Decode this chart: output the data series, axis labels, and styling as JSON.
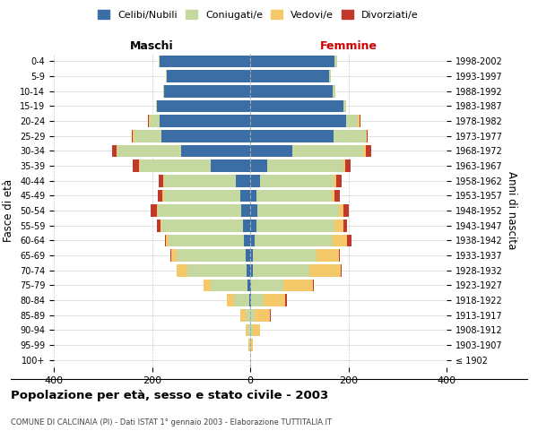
{
  "age_groups": [
    "100+",
    "95-99",
    "90-94",
    "85-89",
    "80-84",
    "75-79",
    "70-74",
    "65-69",
    "60-64",
    "55-59",
    "50-54",
    "45-49",
    "40-44",
    "35-39",
    "30-34",
    "25-29",
    "20-24",
    "15-19",
    "10-14",
    "5-9",
    "0-4"
  ],
  "birth_years": [
    "≤ 1902",
    "1903-1907",
    "1908-1912",
    "1913-1917",
    "1918-1922",
    "1923-1927",
    "1928-1932",
    "1933-1937",
    "1938-1942",
    "1943-1947",
    "1948-1952",
    "1953-1957",
    "1958-1962",
    "1963-1967",
    "1968-1972",
    "1973-1977",
    "1978-1982",
    "1983-1987",
    "1988-1992",
    "1993-1997",
    "1998-2002"
  ],
  "male": {
    "celibi": [
      0,
      0,
      0,
      0,
      2,
      5,
      8,
      10,
      12,
      15,
      18,
      20,
      30,
      80,
      140,
      180,
      185,
      190,
      175,
      170,
      185
    ],
    "coniugati": [
      0,
      2,
      5,
      10,
      30,
      75,
      120,
      140,
      155,
      165,
      170,
      155,
      145,
      145,
      130,
      55,
      20,
      2,
      2,
      2,
      2
    ],
    "vedovi": [
      0,
      2,
      5,
      10,
      15,
      15,
      22,
      10,
      5,
      2,
      2,
      4,
      2,
      2,
      2,
      5,
      2,
      0,
      0,
      0,
      0
    ],
    "divorziati": [
      0,
      0,
      0,
      0,
      0,
      0,
      0,
      2,
      2,
      8,
      12,
      10,
      10,
      12,
      10,
      2,
      2,
      0,
      0,
      0,
      0
    ]
  },
  "female": {
    "nubili": [
      0,
      0,
      0,
      0,
      2,
      2,
      5,
      5,
      10,
      12,
      15,
      12,
      20,
      35,
      85,
      170,
      195,
      190,
      168,
      160,
      172
    ],
    "coniugate": [
      0,
      0,
      5,
      10,
      25,
      65,
      115,
      130,
      158,
      160,
      165,
      155,
      150,
      155,
      145,
      65,
      25,
      5,
      5,
      5,
      5
    ],
    "vedove": [
      0,
      5,
      15,
      30,
      45,
      60,
      65,
      45,
      30,
      18,
      10,
      5,
      5,
      3,
      5,
      3,
      2,
      0,
      0,
      0,
      0
    ],
    "divorziate": [
      0,
      0,
      0,
      2,
      2,
      2,
      2,
      2,
      8,
      8,
      10,
      10,
      12,
      12,
      12,
      2,
      2,
      0,
      0,
      0,
      0
    ]
  },
  "colors": {
    "celibi": "#3A6EA5",
    "coniugati": "#C5D8A0",
    "vedovi": "#F5C96A",
    "divorziati": "#C0392B"
  },
  "title": "Popolazione per età, sesso e stato civile - 2003",
  "subtitle": "COMUNE DI CALCINAIA (PI) - Dati ISTAT 1° gennaio 2003 - Elaborazione TUTTITALIA.IT",
  "xlabel_left": "Maschi",
  "xlabel_right": "Femmine",
  "ylabel_left": "Fasce di età",
  "ylabel_right": "Anni di nascita",
  "xlim": 400,
  "legend_labels": [
    "Celibi/Nubili",
    "Coniugati/e",
    "Vedovi/e",
    "Divorziati/e"
  ],
  "background_color": "#ffffff",
  "grid_color": "#cccccc"
}
